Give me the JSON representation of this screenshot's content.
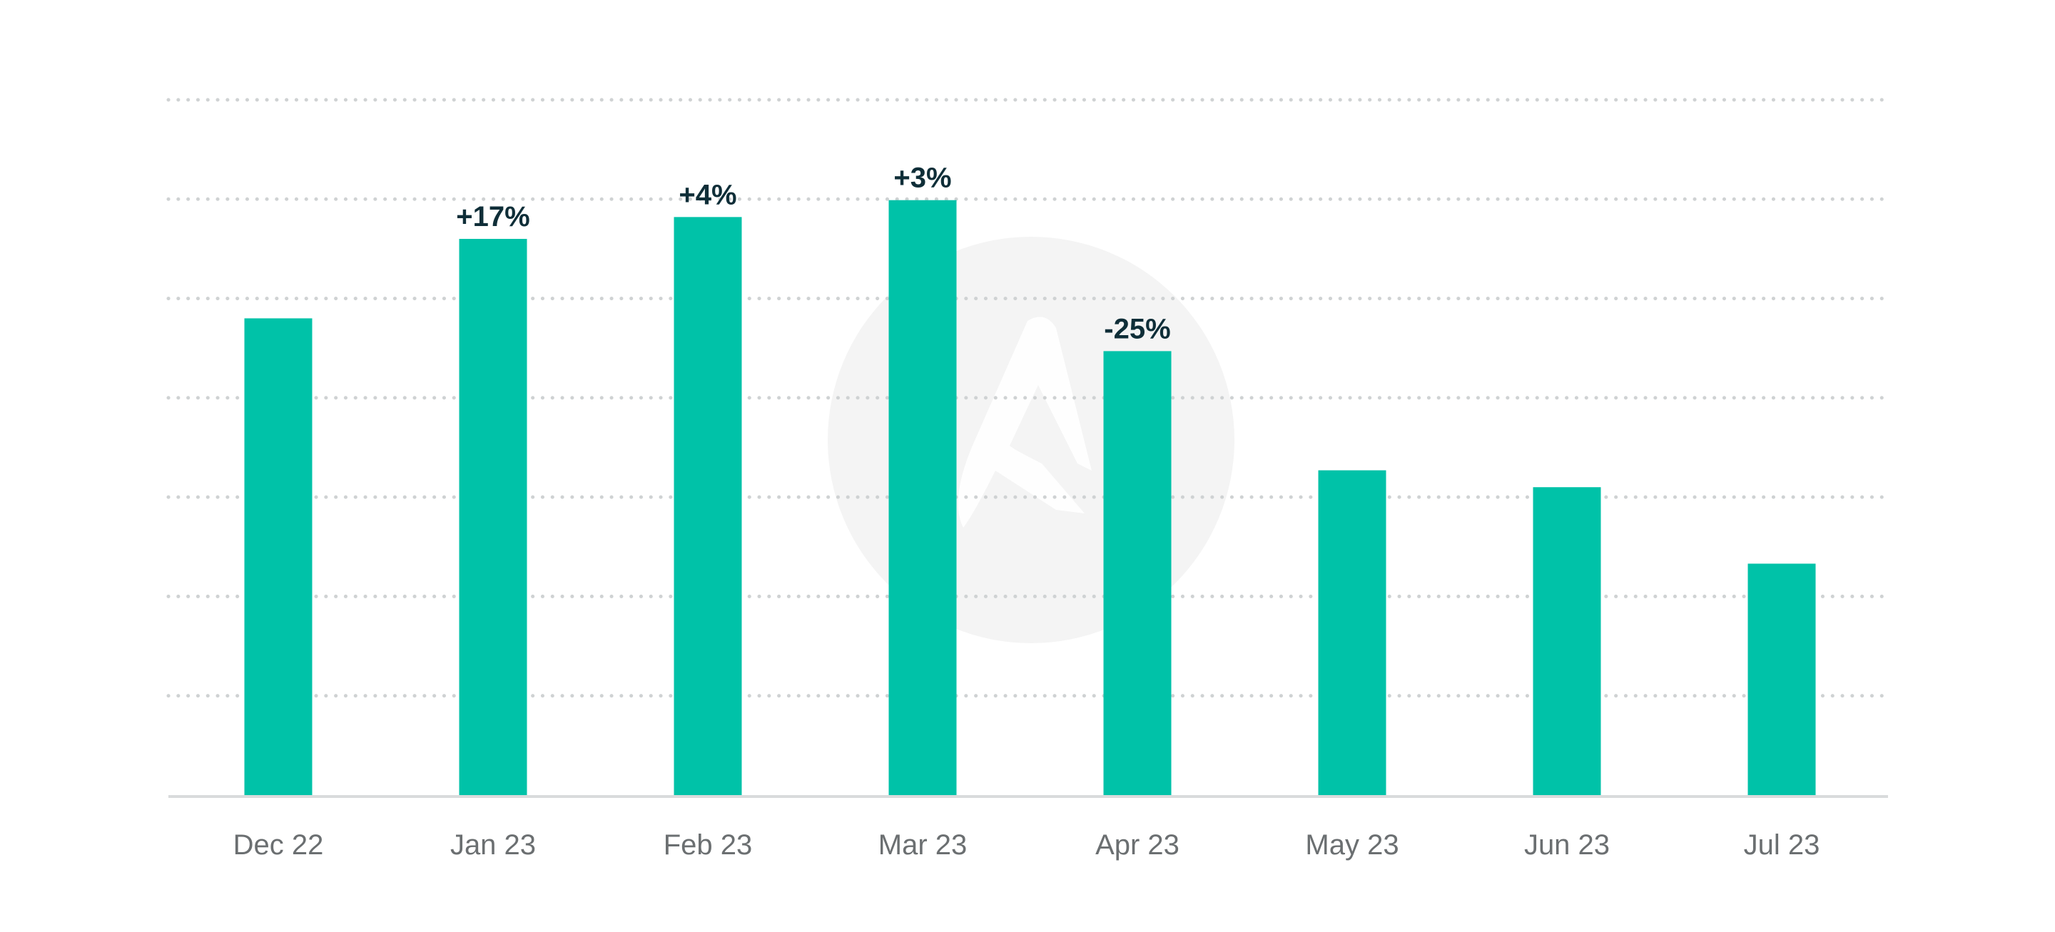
{
  "chart_data": {
    "type": "bar",
    "categories": [
      "Dec 22",
      "Jan 23",
      "Feb 23",
      "Mar 23",
      "Apr 23",
      "May 23",
      "Jun 23",
      "Jul 23"
    ],
    "values": [
      4.8,
      5.6,
      5.82,
      5.99,
      4.47,
      3.27,
      3.1,
      2.33
    ],
    "data_labels": [
      "",
      "+17%",
      "+4%",
      "+3%",
      "-25%",
      "",
      "",
      ""
    ],
    "title": "",
    "xlabel": "",
    "ylabel": "",
    "ylim": [
      0,
      7
    ],
    "y_gridlines": 7,
    "y_tick_labels_shown": false,
    "grid": true,
    "grid_style": "dotted",
    "legend": "none",
    "colors": {
      "bar": "#00c2a8",
      "data_label": "#0f2e38",
      "tick_label": "#6b6f71",
      "grid": "#cfd2d3",
      "watermark": "#f4f4f4"
    }
  }
}
